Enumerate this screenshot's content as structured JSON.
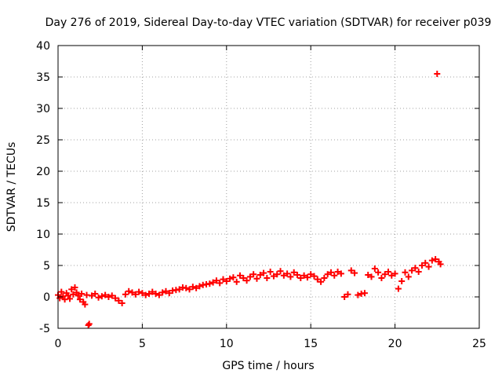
{
  "chart_data": {
    "type": "scatter",
    "title": "Day 276 of 2019, Sidereal Day-to-day VTEC variation (SDTVAR) for receiver p039",
    "xlabel": "GPS time / hours",
    "ylabel": "SDTVAR / TECUs",
    "xlim": [
      0,
      25
    ],
    "ylim": [
      -5,
      40
    ],
    "x_ticks": [
      0,
      5,
      10,
      15,
      20,
      25
    ],
    "y_ticks": [
      -5,
      0,
      5,
      10,
      15,
      20,
      25,
      30,
      35,
      40
    ],
    "grid": true,
    "marker": "+",
    "series": [
      {
        "name": "SDTVAR",
        "color": "#ff0000",
        "points": [
          [
            0.0,
            0.3
          ],
          [
            0.1,
            -0.2
          ],
          [
            0.2,
            0.8
          ],
          [
            0.3,
            0.1
          ],
          [
            0.4,
            -0.4
          ],
          [
            0.5,
            0.6
          ],
          [
            0.6,
            0.2
          ],
          [
            0.7,
            -0.3
          ],
          [
            0.8,
            1.2
          ],
          [
            0.9,
            0.4
          ],
          [
            1.0,
            1.5
          ],
          [
            1.1,
            0.7
          ],
          [
            1.2,
            0.2
          ],
          [
            1.3,
            -0.4
          ],
          [
            1.4,
            0.5
          ],
          [
            1.5,
            -0.8
          ],
          [
            1.6,
            -1.2
          ],
          [
            1.7,
            0.3
          ],
          [
            1.8,
            -4.5
          ],
          [
            1.85,
            -4.3
          ],
          [
            2.0,
            0.2
          ],
          [
            2.2,
            0.5
          ],
          [
            2.4,
            -0.1
          ],
          [
            2.6,
            0.1
          ],
          [
            2.8,
            0.3
          ],
          [
            3.0,
            0.0
          ],
          [
            3.2,
            0.2
          ],
          [
            3.4,
            -0.2
          ],
          [
            3.6,
            -0.6
          ],
          [
            3.8,
            -1.0
          ],
          [
            4.0,
            0.4
          ],
          [
            4.2,
            0.9
          ],
          [
            4.4,
            0.7
          ],
          [
            4.6,
            0.4
          ],
          [
            4.8,
            0.8
          ],
          [
            5.0,
            0.6
          ],
          [
            5.2,
            0.3
          ],
          [
            5.4,
            0.5
          ],
          [
            5.6,
            0.8
          ],
          [
            5.8,
            0.5
          ],
          [
            6.0,
            0.3
          ],
          [
            6.2,
            0.7
          ],
          [
            6.4,
            0.9
          ],
          [
            6.6,
            0.6
          ],
          [
            6.8,
            1.0
          ],
          [
            7.0,
            1.1
          ],
          [
            7.2,
            1.2
          ],
          [
            7.4,
            1.5
          ],
          [
            7.6,
            1.4
          ],
          [
            7.8,
            1.2
          ],
          [
            8.0,
            1.6
          ],
          [
            8.2,
            1.4
          ],
          [
            8.4,
            1.7
          ],
          [
            8.6,
            1.9
          ],
          [
            8.8,
            2.0
          ],
          [
            9.0,
            2.1
          ],
          [
            9.2,
            2.3
          ],
          [
            9.4,
            2.6
          ],
          [
            9.6,
            2.2
          ],
          [
            9.8,
            2.8
          ],
          [
            10.0,
            2.5
          ],
          [
            10.2,
            2.9
          ],
          [
            10.4,
            3.1
          ],
          [
            10.6,
            2.4
          ],
          [
            10.8,
            3.4
          ],
          [
            11.0,
            3.0
          ],
          [
            11.2,
            2.6
          ],
          [
            11.4,
            3.2
          ],
          [
            11.6,
            3.6
          ],
          [
            11.8,
            2.9
          ],
          [
            12.0,
            3.5
          ],
          [
            12.2,
            3.8
          ],
          [
            12.4,
            3.0
          ],
          [
            12.6,
            4.0
          ],
          [
            12.8,
            3.3
          ],
          [
            13.0,
            3.6
          ],
          [
            13.2,
            4.1
          ],
          [
            13.4,
            3.4
          ],
          [
            13.6,
            3.7
          ],
          [
            13.8,
            3.2
          ],
          [
            14.0,
            3.9
          ],
          [
            14.2,
            3.5
          ],
          [
            14.4,
            3.0
          ],
          [
            14.6,
            3.4
          ],
          [
            14.8,
            3.1
          ],
          [
            15.0,
            3.6
          ],
          [
            15.2,
            3.3
          ],
          [
            15.4,
            2.8
          ],
          [
            15.6,
            2.4
          ],
          [
            15.8,
            3.0
          ],
          [
            16.0,
            3.6
          ],
          [
            16.2,
            3.9
          ],
          [
            16.4,
            3.4
          ],
          [
            16.6,
            4.0
          ],
          [
            16.8,
            3.7
          ],
          [
            17.0,
            0.0
          ],
          [
            17.2,
            0.4
          ],
          [
            17.4,
            4.2
          ],
          [
            17.6,
            3.8
          ],
          [
            17.8,
            0.3
          ],
          [
            18.0,
            0.5
          ],
          [
            18.2,
            0.6
          ],
          [
            18.4,
            3.5
          ],
          [
            18.6,
            3.2
          ],
          [
            18.8,
            4.5
          ],
          [
            19.0,
            3.9
          ],
          [
            19.2,
            3.0
          ],
          [
            19.4,
            3.6
          ],
          [
            19.6,
            4.0
          ],
          [
            19.8,
            3.4
          ],
          [
            20.0,
            3.7
          ],
          [
            20.2,
            1.3
          ],
          [
            20.4,
            2.5
          ],
          [
            20.6,
            3.9
          ],
          [
            20.8,
            3.2
          ],
          [
            21.0,
            4.2
          ],
          [
            21.2,
            4.6
          ],
          [
            21.4,
            4.0
          ],
          [
            21.6,
            5.0
          ],
          [
            21.8,
            5.4
          ],
          [
            22.0,
            4.8
          ],
          [
            22.2,
            5.8
          ],
          [
            22.4,
            6.0
          ],
          [
            22.6,
            5.6
          ],
          [
            22.7,
            5.2
          ],
          [
            22.5,
            35.5
          ]
        ]
      }
    ]
  }
}
